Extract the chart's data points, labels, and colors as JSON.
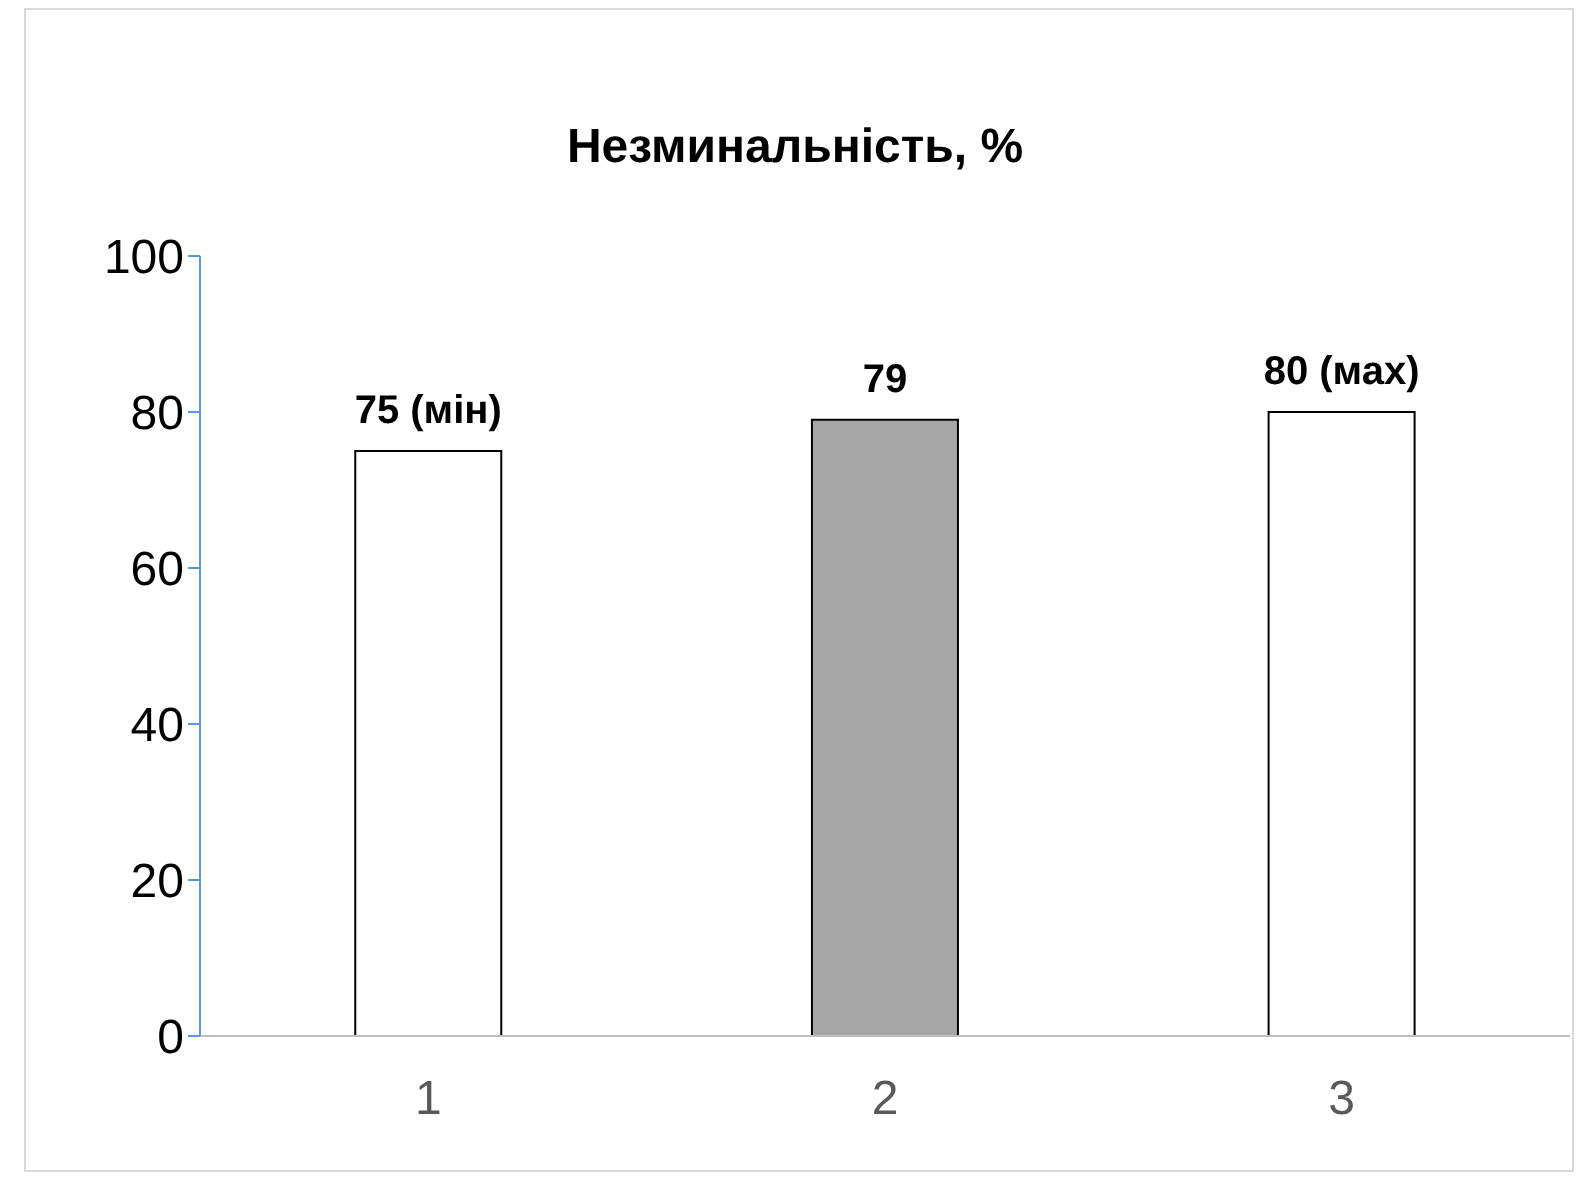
{
  "chart_data": {
    "type": "bar",
    "title": "Незминальність, %",
    "categories": [
      "1",
      "2",
      "3"
    ],
    "values": [
      75,
      79,
      80
    ],
    "colors": [
      "#ffffff",
      "#a6a6a6",
      "#ffffff"
    ],
    "value_labels": [
      "75 (мін)",
      "79",
      "80 (мах)"
    ],
    "ylim": [
      0,
      100
    ],
    "yticks": [
      0,
      20,
      40,
      60,
      80,
      100
    ]
  }
}
